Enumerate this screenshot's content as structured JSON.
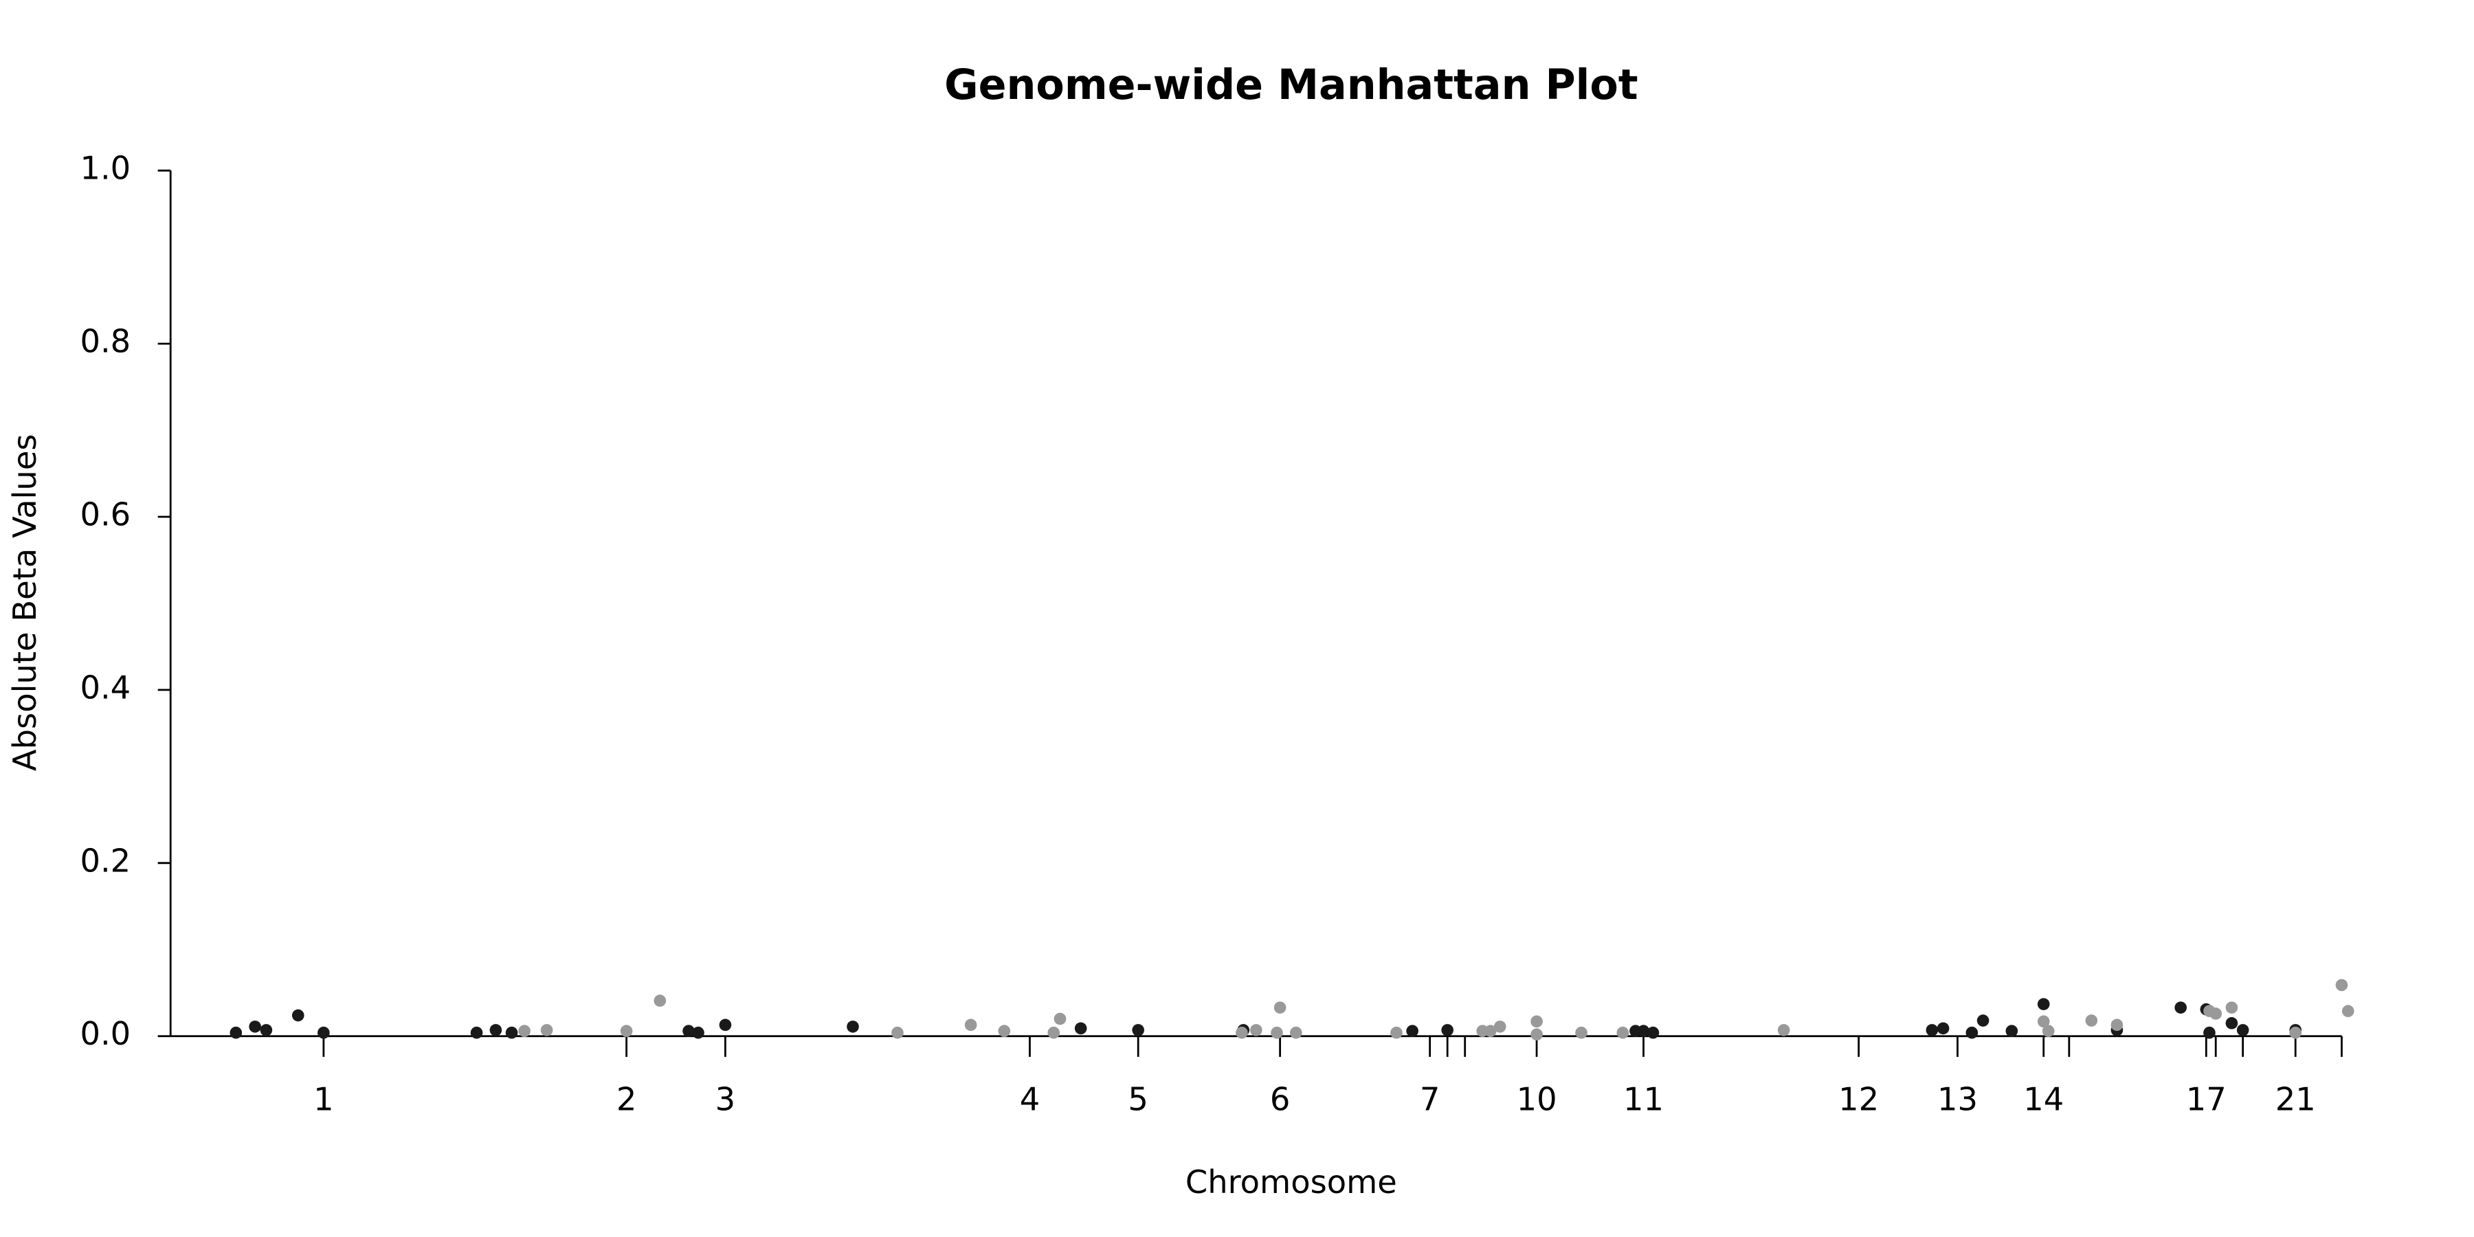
{
  "chart_data": {
    "type": "scatter",
    "title": "Genome-wide Manhattan Plot",
    "x_label": "Chromosome",
    "y_label": "Absolute Beta Values",
    "xlim": [
      107,
      1475
    ],
    "ylim": [
      0,
      1
    ],
    "yticks": [
      {
        "value": 0,
        "label": "0.0"
      },
      0.2,
      0.4,
      0.6,
      0.8,
      {
        "value": 1,
        "label": "1.0"
      }
    ],
    "xticks": [
      {
        "value": 203,
        "label": "1"
      },
      {
        "value": 393,
        "label": "2"
      },
      {
        "value": 455,
        "label": "3"
      },
      {
        "value": 646,
        "label": "4"
      },
      {
        "value": 714,
        "label": "5"
      },
      {
        "value": 803,
        "label": "6"
      },
      {
        "value": 897,
        "label": "7"
      },
      {
        "value": 908,
        "label": null
      },
      {
        "value": 919,
        "label": null
      },
      {
        "value": 964,
        "label": "10"
      },
      {
        "value": 1031,
        "label": "11"
      },
      {
        "value": 1166,
        "label": "12"
      },
      {
        "value": 1228,
        "label": "13"
      },
      {
        "value": 1282,
        "label": "14"
      },
      {
        "value": 1298,
        "label": null
      },
      {
        "value": 1384,
        "label": "17"
      },
      {
        "value": 1390,
        "label": null
      },
      {
        "value": 1407,
        "label": null
      },
      {
        "value": 1440,
        "label": "21"
      },
      {
        "value": 1469,
        "label": null
      }
    ],
    "series": [
      {
        "color": "#1a1a1a",
        "x": [
          148,
          160,
          167,
          187,
          203,
          299,
          311,
          321,
          432,
          438,
          455,
          535,
          678,
          714,
          780,
          886,
          908,
          1026,
          1031,
          1037,
          1212,
          1219,
          1237,
          1244,
          1262,
          1282,
          1328,
          1368,
          1384,
          1386,
          1400,
          1407,
          1440
        ],
        "values": [
          0.004,
          0.011,
          0.007,
          0.024,
          0.004,
          0.004,
          0.007,
          0.004,
          0.006,
          0.004,
          0.013,
          0.011,
          0.009,
          0.007,
          0.007,
          0.006,
          0.007,
          0.006,
          0.006,
          0.004,
          0.007,
          0.009,
          0.004,
          0.018,
          0.006,
          0.037,
          0.007,
          0.033,
          0.031,
          0.004,
          0.015,
          0.007,
          0.007
        ]
      },
      {
        "color": "#999999",
        "x": [
          329,
          343,
          393,
          414,
          563,
          609,
          630,
          661,
          665,
          779,
          788,
          801,
          803,
          813,
          876,
          930,
          935,
          941,
          964,
          964,
          992,
          1018,
          1119,
          1282,
          1285,
          1312,
          1328,
          1386,
          1390,
          1400,
          1440,
          1469,
          1473
        ],
        "values": [
          0.006,
          0.007,
          0.006,
          0.041,
          0.004,
          0.013,
          0.006,
          0.004,
          0.02,
          0.004,
          0.007,
          0.004,
          0.033,
          0.004,
          0.004,
          0.006,
          0.006,
          0.011,
          0.017,
          0.002,
          0.004,
          0.004,
          0.007,
          0.017,
          0.006,
          0.018,
          0.013,
          0.029,
          0.026,
          0.033,
          0.004,
          0.059,
          0.029
        ]
      }
    ]
  }
}
